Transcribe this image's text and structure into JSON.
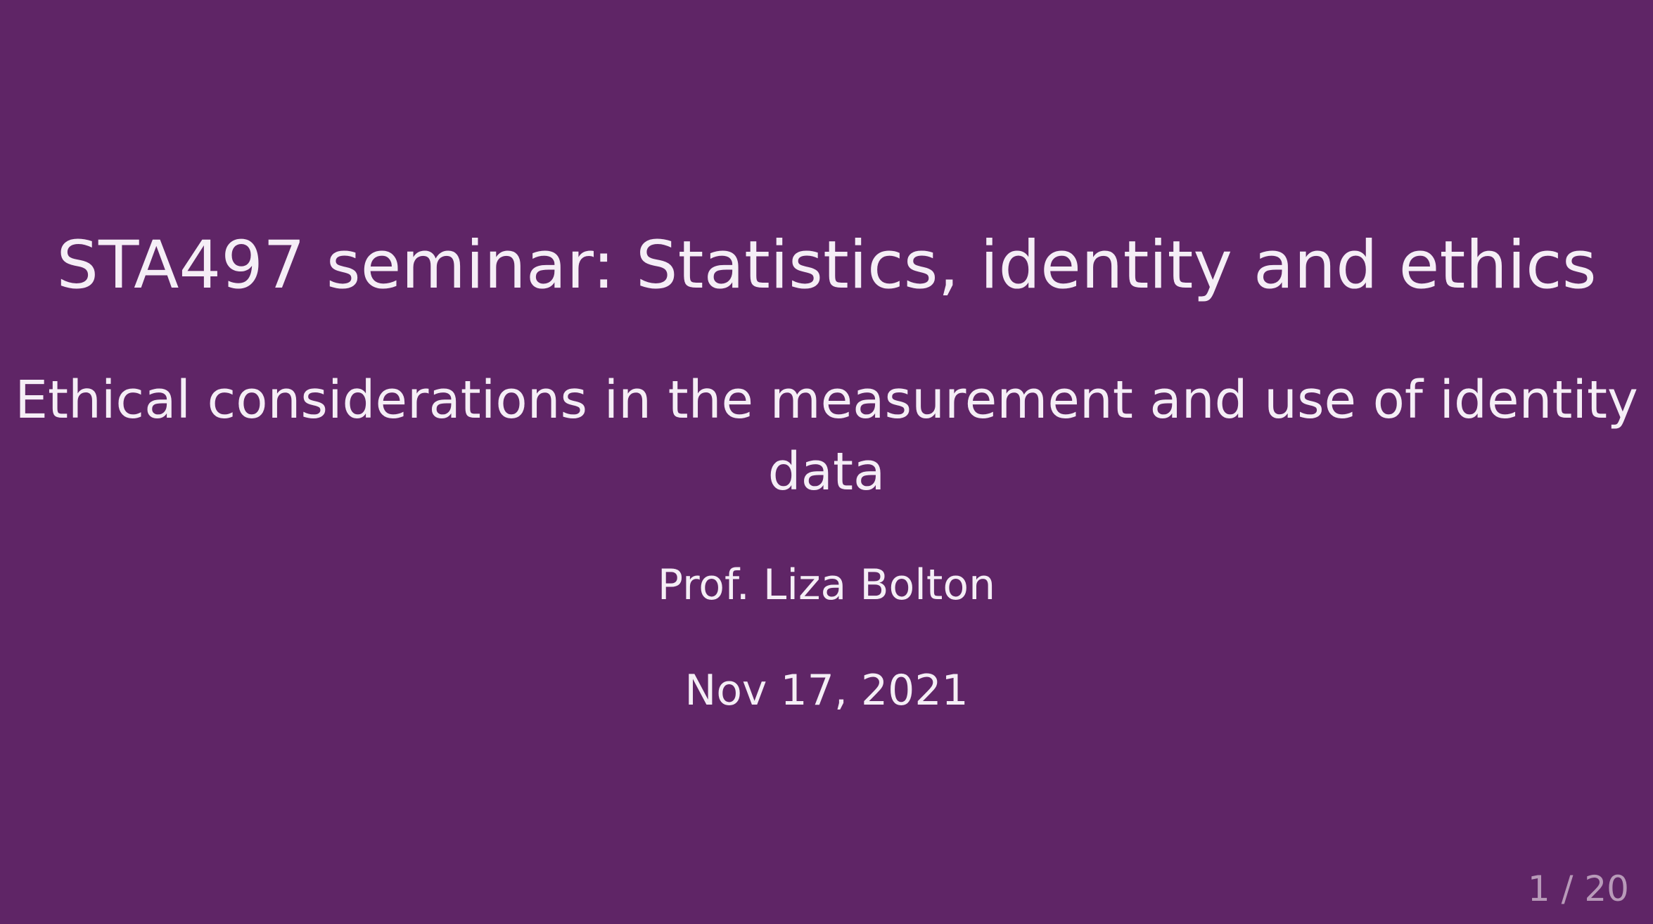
{
  "slide": {
    "title": "STA497 seminar: Statistics, identity and ethics",
    "subtitle": "Ethical considerations in the measurement and use of identity data",
    "author": "Prof. Liza Bolton",
    "date": "Nov 17, 2021",
    "page_number": "1 / 20"
  },
  "colors": {
    "background": "#5f2566",
    "text": "#f5eef6",
    "page_number": "#b89ab9"
  }
}
